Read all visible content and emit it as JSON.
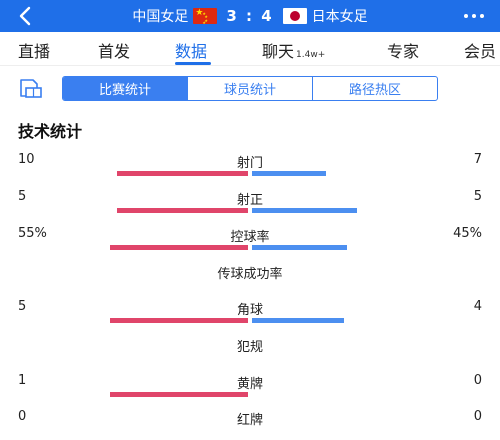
{
  "header": {
    "home_team": "中国女足",
    "away_team": "日本女足",
    "score": "3 : 4"
  },
  "nav": {
    "tabs": [
      {
        "label": "直播",
        "sub": ""
      },
      {
        "label": "首发",
        "sub": ""
      },
      {
        "label": "数据",
        "sub": ""
      },
      {
        "label": "聊天",
        "sub": "1.4w+"
      },
      {
        "label": "专家",
        "sub": ""
      },
      {
        "label": "会员",
        "sub": ""
      }
    ],
    "active_index": 2
  },
  "segments": {
    "items": [
      "比赛统计",
      "球员统计",
      "路径热区"
    ],
    "active_index": 0
  },
  "section_title": "技术统计",
  "colors": {
    "accent": "#1f6fe8",
    "home_bar": "#e0456a",
    "away_bar": "#4c8ff0"
  },
  "stats": [
    {
      "label": "射门",
      "home": "10",
      "away": "7",
      "home_share": 0.5,
      "away_share": 0.35
    },
    {
      "label": "射正",
      "home": "5",
      "away": "5",
      "home_share": 0.5,
      "away_share": 0.5
    },
    {
      "label": "控球率",
      "home": "55%",
      "away": "45%",
      "home_share": 0.55,
      "away_share": 0.45
    },
    {
      "label": "传球成功率",
      "home": "",
      "away": "",
      "home_share": 0,
      "away_share": 0
    },
    {
      "label": "角球",
      "home": "5",
      "away": "4",
      "home_share": 0.56,
      "away_share": 0.44
    },
    {
      "label": "犯规",
      "home": "",
      "away": "",
      "home_share": 0,
      "away_share": 0
    },
    {
      "label": "黄牌",
      "home": "1",
      "away": "0",
      "home_share": 1.0,
      "away_share": 0
    },
    {
      "label": "红牌",
      "home": "0",
      "away": "0",
      "home_share": 0,
      "away_share": 0
    }
  ]
}
